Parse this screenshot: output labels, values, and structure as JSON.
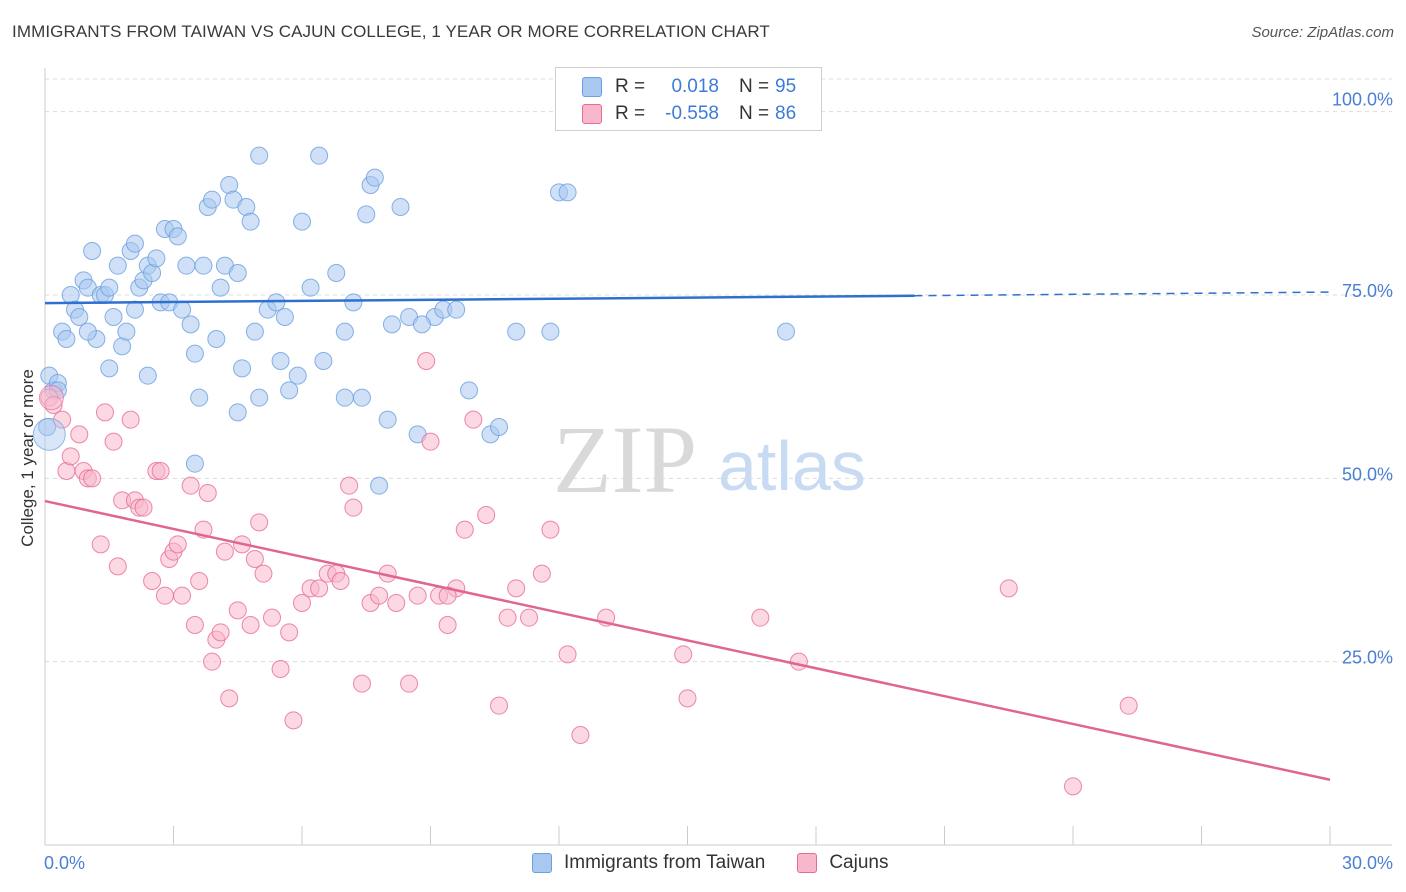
{
  "title": "IMMIGRANTS FROM TAIWAN VS CAJUN COLLEGE, 1 YEAR OR MORE CORRELATION CHART",
  "source": "Source: ZipAtlas.com",
  "watermark": {
    "zip": "ZIP",
    "atlas": "atlas"
  },
  "legend_stats": [
    {
      "swatch_color": "#a9c8f0",
      "r_label": "R =",
      "r_value": "0.018",
      "n_label": "N =",
      "n_value": "95"
    },
    {
      "swatch_color": "#f7b8cb",
      "r_label": "R =",
      "r_value": "-0.558",
      "n_label": "N =",
      "n_value": "86"
    }
  ],
  "bottom_legend": [
    {
      "label": "Immigrants from Taiwan",
      "color": "#a9c8f0"
    },
    {
      "label": "Cajuns",
      "color": "#f7b8cb"
    }
  ],
  "chart_data": {
    "type": "scatter",
    "xlabel": "",
    "ylabel": "College, 1 year or more",
    "xlim": [
      0,
      30
    ],
    "ylim": [
      0,
      105
    ],
    "x_tick_labels": [
      {
        "value": 0,
        "label": "0.0%"
      },
      {
        "value": 30,
        "label": "30.0%"
      }
    ],
    "y_tick_labels": [
      {
        "value": 100,
        "label": "100.0%"
      },
      {
        "value": 75,
        "label": "75.0%"
      },
      {
        "value": 50,
        "label": "50.0%"
      },
      {
        "value": 25,
        "label": "25.0%"
      }
    ],
    "grid": true,
    "series": [
      {
        "name": "Immigrants from Taiwan",
        "color": "#6a9fe0",
        "fill": "#a9c8f0",
        "trend": {
          "x0": 0,
          "y0": 73.9,
          "x1": 20.3,
          "y1": 74.9,
          "dash_to": 30,
          "dash_y": 75.4
        },
        "points": [
          [
            0.1,
            64
          ],
          [
            0.2,
            62
          ],
          [
            0.3,
            63
          ],
          [
            0.4,
            70
          ],
          [
            0.5,
            69
          ],
          [
            0.6,
            75
          ],
          [
            0.7,
            73
          ],
          [
            0.8,
            72
          ],
          [
            0.9,
            77
          ],
          [
            1.0,
            76
          ],
          [
            1.1,
            81
          ],
          [
            1.2,
            69
          ],
          [
            1.3,
            75
          ],
          [
            1.4,
            75
          ],
          [
            1.5,
            76
          ],
          [
            1.6,
            72
          ],
          [
            1.7,
            79
          ],
          [
            1.8,
            68
          ],
          [
            1.9,
            70
          ],
          [
            2.0,
            81
          ],
          [
            2.1,
            82
          ],
          [
            2.2,
            76
          ],
          [
            2.3,
            77
          ],
          [
            2.4,
            79
          ],
          [
            2.5,
            78
          ],
          [
            2.6,
            80
          ],
          [
            2.7,
            74
          ],
          [
            2.8,
            84
          ],
          [
            2.9,
            74
          ],
          [
            3.0,
            84
          ],
          [
            3.1,
            83
          ],
          [
            3.2,
            73
          ],
          [
            3.3,
            79
          ],
          [
            3.4,
            71
          ],
          [
            3.5,
            67
          ],
          [
            3.6,
            61
          ],
          [
            3.7,
            79
          ],
          [
            3.8,
            87
          ],
          [
            3.9,
            88
          ],
          [
            4.0,
            69
          ],
          [
            4.1,
            76
          ],
          [
            4.2,
            79
          ],
          [
            4.3,
            90
          ],
          [
            4.4,
            88
          ],
          [
            4.5,
            78
          ],
          [
            4.6,
            65
          ],
          [
            4.7,
            87
          ],
          [
            4.8,
            85
          ],
          [
            4.9,
            70
          ],
          [
            5.0,
            94
          ],
          [
            5.2,
            73
          ],
          [
            5.4,
            74
          ],
          [
            5.5,
            66
          ],
          [
            5.6,
            72
          ],
          [
            5.7,
            62
          ],
          [
            5.9,
            64
          ],
          [
            6.0,
            85
          ],
          [
            6.2,
            76
          ],
          [
            6.4,
            94
          ],
          [
            6.8,
            78
          ],
          [
            7.0,
            61
          ],
          [
            7.2,
            74
          ],
          [
            7.4,
            61
          ],
          [
            7.5,
            86
          ],
          [
            7.6,
            90
          ],
          [
            7.7,
            91
          ],
          [
            7.8,
            49
          ],
          [
            8.0,
            58
          ],
          [
            8.1,
            71
          ],
          [
            8.3,
            87
          ],
          [
            8.5,
            72
          ],
          [
            8.7,
            56
          ],
          [
            9.1,
            72
          ],
          [
            9.3,
            73
          ],
          [
            9.6,
            73
          ],
          [
            9.9,
            62
          ],
          [
            10.4,
            56
          ],
          [
            10.6,
            57
          ],
          [
            11.8,
            70
          ],
          [
            12.0,
            89
          ],
          [
            12.2,
            89
          ],
          [
            17.3,
            70
          ],
          [
            4.5,
            59
          ],
          [
            3.5,
            52
          ],
          [
            2.4,
            64
          ],
          [
            1.5,
            65
          ],
          [
            0.3,
            62
          ],
          [
            1.0,
            70
          ],
          [
            6.5,
            66
          ],
          [
            7.0,
            70
          ],
          [
            0.05,
            57
          ],
          [
            2.1,
            73
          ],
          [
            5.0,
            61
          ],
          [
            8.8,
            71
          ],
          [
            11.0,
            70
          ]
        ]
      },
      {
        "name": "Cajuns",
        "color": "#e86a97",
        "fill": "#f7b8cb",
        "trend": {
          "x0": 0,
          "y0": 46.9,
          "x1": 30,
          "y1": 8.9
        },
        "points": [
          [
            0.1,
            61
          ],
          [
            0.2,
            60
          ],
          [
            0.4,
            58
          ],
          [
            0.5,
            51
          ],
          [
            0.6,
            53
          ],
          [
            0.8,
            56
          ],
          [
            0.9,
            51
          ],
          [
            1.0,
            50
          ],
          [
            1.1,
            50
          ],
          [
            1.3,
            41
          ],
          [
            1.4,
            59
          ],
          [
            1.6,
            55
          ],
          [
            1.7,
            38
          ],
          [
            1.8,
            47
          ],
          [
            2.0,
            58
          ],
          [
            2.1,
            47
          ],
          [
            2.2,
            46
          ],
          [
            2.3,
            46
          ],
          [
            2.5,
            36
          ],
          [
            2.6,
            51
          ],
          [
            2.7,
            51
          ],
          [
            2.8,
            34
          ],
          [
            2.9,
            39
          ],
          [
            3.0,
            40
          ],
          [
            3.1,
            41
          ],
          [
            3.2,
            34
          ],
          [
            3.4,
            49
          ],
          [
            3.5,
            30
          ],
          [
            3.6,
            36
          ],
          [
            3.7,
            43
          ],
          [
            3.8,
            48
          ],
          [
            3.9,
            25
          ],
          [
            4.0,
            28
          ],
          [
            4.1,
            29
          ],
          [
            4.2,
            40
          ],
          [
            4.3,
            20
          ],
          [
            4.5,
            32
          ],
          [
            4.6,
            41
          ],
          [
            4.8,
            30
          ],
          [
            4.9,
            39
          ],
          [
            5.0,
            44
          ],
          [
            5.1,
            37
          ],
          [
            5.3,
            31
          ],
          [
            5.5,
            24
          ],
          [
            5.7,
            29
          ],
          [
            5.8,
            17
          ],
          [
            6.0,
            33
          ],
          [
            6.2,
            35
          ],
          [
            6.4,
            35
          ],
          [
            6.6,
            37
          ],
          [
            6.8,
            37
          ],
          [
            7.1,
            49
          ],
          [
            7.2,
            46
          ],
          [
            7.4,
            22
          ],
          [
            7.6,
            33
          ],
          [
            7.8,
            34
          ],
          [
            8.0,
            37
          ],
          [
            8.2,
            33
          ],
          [
            8.5,
            22
          ],
          [
            8.7,
            34
          ],
          [
            8.9,
            66
          ],
          [
            9.0,
            55
          ],
          [
            9.2,
            34
          ],
          [
            9.4,
            30
          ],
          [
            9.6,
            35
          ],
          [
            9.8,
            43
          ],
          [
            10.0,
            58
          ],
          [
            10.3,
            45
          ],
          [
            10.6,
            19
          ],
          [
            10.8,
            31
          ],
          [
            11.0,
            35
          ],
          [
            11.3,
            31
          ],
          [
            11.6,
            37
          ],
          [
            11.8,
            43
          ],
          [
            12.2,
            26
          ],
          [
            12.5,
            15
          ],
          [
            13.1,
            31
          ],
          [
            14.9,
            26
          ],
          [
            15.0,
            20
          ],
          [
            16.7,
            31
          ],
          [
            17.6,
            25
          ],
          [
            22.5,
            35
          ],
          [
            25.3,
            19
          ],
          [
            24.0,
            8
          ],
          [
            9.4,
            34
          ],
          [
            6.9,
            36
          ]
        ]
      }
    ]
  }
}
